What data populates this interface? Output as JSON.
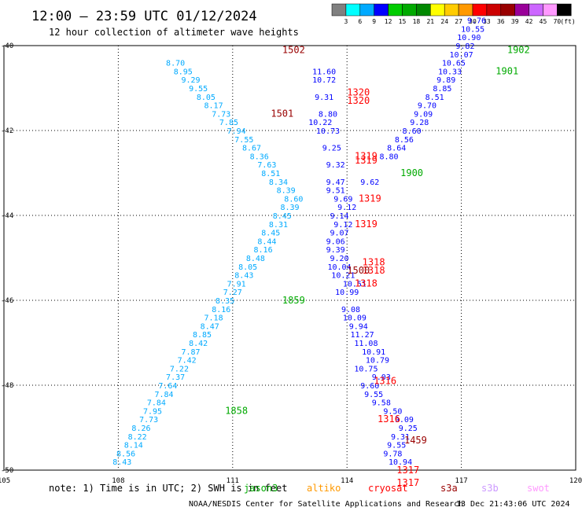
{
  "header": {
    "title": "12:00 – 23:59 UTC 01/12/2024",
    "subtitle": "12 hour collection of altimeter wave heights"
  },
  "colorbar": {
    "labels": [
      "3",
      "6",
      "9",
      "12",
      "15",
      "18",
      "21",
      "24",
      "27",
      "30",
      "33",
      "36",
      "39",
      "42",
      "45",
      "70"
    ],
    "unit": "(ft)",
    "colors": [
      "#808080",
      "#00ffff",
      "#00aaff",
      "#0000ff",
      "#00cc00",
      "#00aa00",
      "#008800",
      "#ffff00",
      "#ffcc00",
      "#ff9900",
      "#ff0000",
      "#cc0000",
      "#990000",
      "#990099",
      "#cc66ff",
      "#ff99ff",
      "#000000"
    ]
  },
  "footer": {
    "note": "note: 1) Time is in UTC; 2) SWH is in feet",
    "credit": "NOAA/NESDIS Center for Satellite Applications and Research",
    "timestamp": "13 Dec 21:43:06 UTC 2024",
    "satellites": [
      {
        "name": "jason3",
        "color": "#00aa00"
      },
      {
        "name": "altiko",
        "color": "#ff9900"
      },
      {
        "name": "cryosat",
        "color": "#ff0000"
      },
      {
        "name": "s3a",
        "color": "#990000"
      },
      {
        "name": "s3b",
        "color": "#cc99ff"
      },
      {
        "name": "swot",
        "color": "#ff99ff"
      }
    ]
  },
  "chart_data": {
    "type": "scatter",
    "title": "12:00 – 23:59 UTC 01/12/2024",
    "subtitle": "12 hour collection of altimeter wave heights",
    "xlim": [
      105,
      120
    ],
    "ylim": [
      -50,
      -40
    ],
    "x_ticks": [
      "105",
      "108",
      "111",
      "114",
      "117",
      "120"
    ],
    "y_ticks": [
      "-40",
      "-42",
      "-44",
      "-46",
      "-48",
      "-50"
    ],
    "grid": true,
    "unit": "ft",
    "series": [
      {
        "color": "#00aaff",
        "points": [
          {
            "x": 108.1,
            "y": -49.8,
            "v": "8.43"
          },
          {
            "x": 108.2,
            "y": -49.6,
            "v": "8.56"
          },
          {
            "x": 108.4,
            "y": -49.4,
            "v": "8.14"
          },
          {
            "x": 108.5,
            "y": -49.2,
            "v": "8.22"
          },
          {
            "x": 108.6,
            "y": -49.0,
            "v": "8.26"
          },
          {
            "x": 108.8,
            "y": -48.8,
            "v": "7.73"
          },
          {
            "x": 108.9,
            "y": -48.6,
            "v": "7.95"
          },
          {
            "x": 109.0,
            "y": -48.4,
            "v": "7.84"
          },
          {
            "x": 109.2,
            "y": -48.2,
            "v": "7.84"
          },
          {
            "x": 109.3,
            "y": -48.0,
            "v": "7.64"
          },
          {
            "x": 109.5,
            "y": -47.8,
            "v": "7.37"
          },
          {
            "x": 109.6,
            "y": -47.6,
            "v": "7.22"
          },
          {
            "x": 109.8,
            "y": -47.4,
            "v": "7.42"
          },
          {
            "x": 109.9,
            "y": -47.2,
            "v": "7.87"
          },
          {
            "x": 110.1,
            "y": -47.0,
            "v": "8.42"
          },
          {
            "x": 110.2,
            "y": -46.8,
            "v": "8.85"
          },
          {
            "x": 110.4,
            "y": -46.6,
            "v": "8.47"
          },
          {
            "x": 110.5,
            "y": -46.4,
            "v": "7.18"
          },
          {
            "x": 110.7,
            "y": -46.2,
            "v": "8.16"
          },
          {
            "x": 110.8,
            "y": -46.0,
            "v": "8.35"
          },
          {
            "x": 111.0,
            "y": -45.8,
            "v": "7.27"
          },
          {
            "x": 111.1,
            "y": -45.6,
            "v": "7.91"
          },
          {
            "x": 111.3,
            "y": -45.4,
            "v": "8.43"
          },
          {
            "x": 111.4,
            "y": -45.2,
            "v": "8.05"
          },
          {
            "x": 111.6,
            "y": -45.0,
            "v": "8.48"
          },
          {
            "x": 111.8,
            "y": -44.8,
            "v": "8.16"
          },
          {
            "x": 111.9,
            "y": -44.6,
            "v": "8.44"
          },
          {
            "x": 112.0,
            "y": -44.4,
            "v": "8.45"
          },
          {
            "x": 112.2,
            "y": -44.2,
            "v": "8.31"
          },
          {
            "x": 112.3,
            "y": -44.0,
            "v": "8.45"
          },
          {
            "x": 112.5,
            "y": -43.8,
            "v": "8.39"
          },
          {
            "x": 112.6,
            "y": -43.6,
            "v": "8.60"
          },
          {
            "x": 112.4,
            "y": -43.4,
            "v": "8.39"
          },
          {
            "x": 112.2,
            "y": -43.2,
            "v": "8.34"
          },
          {
            "x": 112.0,
            "y": -43.0,
            "v": "8.51"
          },
          {
            "x": 111.9,
            "y": -42.8,
            "v": "7.63"
          },
          {
            "x": 111.7,
            "y": -42.6,
            "v": "8.36"
          },
          {
            "x": 111.5,
            "y": -42.4,
            "v": "8.67"
          },
          {
            "x": 111.3,
            "y": -42.2,
            "v": "7.55"
          },
          {
            "x": 111.1,
            "y": -42.0,
            "v": "7.94"
          },
          {
            "x": 110.9,
            "y": -41.8,
            "v": "7.85"
          },
          {
            "x": 110.7,
            "y": -41.6,
            "v": "7.73"
          },
          {
            "x": 110.5,
            "y": -41.4,
            "v": "8.17"
          },
          {
            "x": 110.3,
            "y": -41.2,
            "v": "8.05"
          },
          {
            "x": 110.1,
            "y": -41.0,
            "v": "9.55"
          },
          {
            "x": 109.9,
            "y": -40.8,
            "v": "9.29"
          },
          {
            "x": 109.7,
            "y": -40.6,
            "v": "8.95"
          },
          {
            "x": 109.5,
            "y": -40.4,
            "v": "8.70"
          }
        ]
      },
      {
        "color": "#0000ff",
        "points": [
          {
            "x": 115.4,
            "y": -49.8,
            "v": "10.94"
          },
          {
            "x": 115.2,
            "y": -49.6,
            "v": "9.78"
          },
          {
            "x": 115.3,
            "y": -49.4,
            "v": "9.55"
          },
          {
            "x": 115.4,
            "y": -49.2,
            "v": "9.31"
          },
          {
            "x": 115.6,
            "y": -49.0,
            "v": "9.25"
          },
          {
            "x": 115.5,
            "y": -48.8,
            "v": "9.09"
          },
          {
            "x": 115.2,
            "y": -48.6,
            "v": "9.50"
          },
          {
            "x": 114.9,
            "y": -48.4,
            "v": "9.58"
          },
          {
            "x": 114.7,
            "y": -48.2,
            "v": "9.55"
          },
          {
            "x": 114.6,
            "y": -48.0,
            "v": "9.60"
          },
          {
            "x": 114.9,
            "y": -47.8,
            "v": "9.03"
          },
          {
            "x": 114.5,
            "y": -47.6,
            "v": "10.75"
          },
          {
            "x": 114.8,
            "y": -47.4,
            "v": "10.79"
          },
          {
            "x": 114.7,
            "y": -47.2,
            "v": "10.91"
          },
          {
            "x": 114.5,
            "y": -47.0,
            "v": "11.08"
          },
          {
            "x": 114.4,
            "y": -46.8,
            "v": "11.27"
          },
          {
            "x": 114.3,
            "y": -46.6,
            "v": "9.94"
          },
          {
            "x": 114.2,
            "y": -46.4,
            "v": "10.09"
          },
          {
            "x": 114.1,
            "y": -46.2,
            "v": "9.08"
          },
          {
            "x": 114.0,
            "y": -45.8,
            "v": "10.99"
          },
          {
            "x": 114.2,
            "y": -45.6,
            "v": "10.51"
          },
          {
            "x": 113.9,
            "y": -45.4,
            "v": "10.21"
          },
          {
            "x": 113.8,
            "y": -45.2,
            "v": "10.04"
          },
          {
            "x": 113.8,
            "y": -45.0,
            "v": "9.20"
          },
          {
            "x": 113.7,
            "y": -44.8,
            "v": "9.39"
          },
          {
            "x": 113.7,
            "y": -44.6,
            "v": "9.06"
          },
          {
            "x": 113.8,
            "y": -44.4,
            "v": "9.07"
          },
          {
            "x": 113.9,
            "y": -44.2,
            "v": "9.12"
          },
          {
            "x": 113.8,
            "y": -44.0,
            "v": "9.14"
          },
          {
            "x": 114.0,
            "y": -43.8,
            "v": "9.12"
          },
          {
            "x": 113.9,
            "y": -43.6,
            "v": "9.69"
          },
          {
            "x": 113.7,
            "y": -43.4,
            "v": "9.51"
          },
          {
            "x": 113.7,
            "y": -43.2,
            "v": "9.47"
          },
          {
            "x": 113.7,
            "y": -42.8,
            "v": "9.32"
          },
          {
            "x": 113.6,
            "y": -42.4,
            "v": "9.25"
          },
          {
            "x": 113.5,
            "y": -42.0,
            "v": "10.73"
          },
          {
            "x": 113.3,
            "y": -41.8,
            "v": "10.22"
          },
          {
            "x": 113.5,
            "y": -41.6,
            "v": "8.80"
          },
          {
            "x": 113.4,
            "y": -41.2,
            "v": "9.31"
          },
          {
            "x": 113.4,
            "y": -40.8,
            "v": "10.72"
          },
          {
            "x": 113.4,
            "y": -40.6,
            "v": "11.60"
          },
          {
            "x": 114.6,
            "y": -43.2,
            "v": "9.62"
          },
          {
            "x": 115.1,
            "y": -42.6,
            "v": "8.80"
          },
          {
            "x": 115.3,
            "y": -42.4,
            "v": "8.64"
          },
          {
            "x": 115.5,
            "y": -42.2,
            "v": "8.56"
          },
          {
            "x": 115.7,
            "y": -42.0,
            "v": "8.60"
          },
          {
            "x": 115.9,
            "y": -41.8,
            "v": "9.28"
          },
          {
            "x": 116.0,
            "y": -41.6,
            "v": "9.09"
          },
          {
            "x": 116.1,
            "y": -41.4,
            "v": "9.70"
          },
          {
            "x": 116.3,
            "y": -41.2,
            "v": "8.51"
          },
          {
            "x": 116.5,
            "y": -41.0,
            "v": "8.85"
          },
          {
            "x": 116.6,
            "y": -40.8,
            "v": "9.89"
          },
          {
            "x": 116.7,
            "y": -40.6,
            "v": "10.33"
          },
          {
            "x": 116.8,
            "y": -40.4,
            "v": "10.65"
          },
          {
            "x": 117.0,
            "y": -40.2,
            "v": "10.07"
          },
          {
            "x": 117.1,
            "y": -40.0,
            "v": "9.82"
          },
          {
            "x": 117.2,
            "y": -39.8,
            "v": "10.90"
          },
          {
            "x": 117.3,
            "y": -39.6,
            "v": "10.55"
          },
          {
            "x": 117.4,
            "y": -39.4,
            "v": "9.76"
          }
        ]
      }
    ],
    "pass_labels": [
      {
        "x": 112.6,
        "y": -40.1,
        "label": "1502",
        "color": "#990000"
      },
      {
        "x": 112.3,
        "y": -41.6,
        "label": "1501",
        "color": "#990000"
      },
      {
        "x": 114.3,
        "y": -41.1,
        "label": "1320",
        "color": "#ff0000"
      },
      {
        "x": 114.3,
        "y": -41.3,
        "label": "1320",
        "color": "#ff0000"
      },
      {
        "x": 114.5,
        "y": -42.6,
        "label": "1319",
        "color": "#ff0000"
      },
      {
        "x": 114.5,
        "y": -42.7,
        "label": "1319",
        "color": "#ff0000"
      },
      {
        "x": 114.6,
        "y": -43.6,
        "label": "1319",
        "color": "#ff0000"
      },
      {
        "x": 114.5,
        "y": -44.2,
        "label": "1319",
        "color": "#ff0000"
      },
      {
        "x": 114.7,
        "y": -45.1,
        "label": "1318",
        "color": "#ff0000"
      },
      {
        "x": 114.7,
        "y": -45.3,
        "label": "1318",
        "color": "#ff0000"
      },
      {
        "x": 114.5,
        "y": -45.6,
        "label": "1318",
        "color": "#ff0000"
      },
      {
        "x": 114.3,
        "y": -45.3,
        "label": "1500",
        "color": "#990000"
      },
      {
        "x": 112.6,
        "y": -46.0,
        "label": "1859",
        "color": "#00aa00"
      },
      {
        "x": 111.1,
        "y": -48.6,
        "label": "1858",
        "color": "#00aa00"
      },
      {
        "x": 115.7,
        "y": -43.0,
        "label": "1900",
        "color": "#00aa00"
      },
      {
        "x": 118.2,
        "y": -40.6,
        "label": "1901",
        "color": "#00aa00"
      },
      {
        "x": 118.5,
        "y": -40.1,
        "label": "1902",
        "color": "#00aa00"
      },
      {
        "x": 115.0,
        "y": -47.9,
        "label": "1316",
        "color": "#ff0000"
      },
      {
        "x": 115.1,
        "y": -48.8,
        "label": "1316",
        "color": "#ff0000"
      },
      {
        "x": 115.8,
        "y": -49.3,
        "label": "1459",
        "color": "#990000"
      },
      {
        "x": 115.6,
        "y": -50.0,
        "label": "1317",
        "color": "#ff0000"
      },
      {
        "x": 115.6,
        "y": -50.3,
        "label": "1317",
        "color": "#ff0000"
      }
    ]
  }
}
